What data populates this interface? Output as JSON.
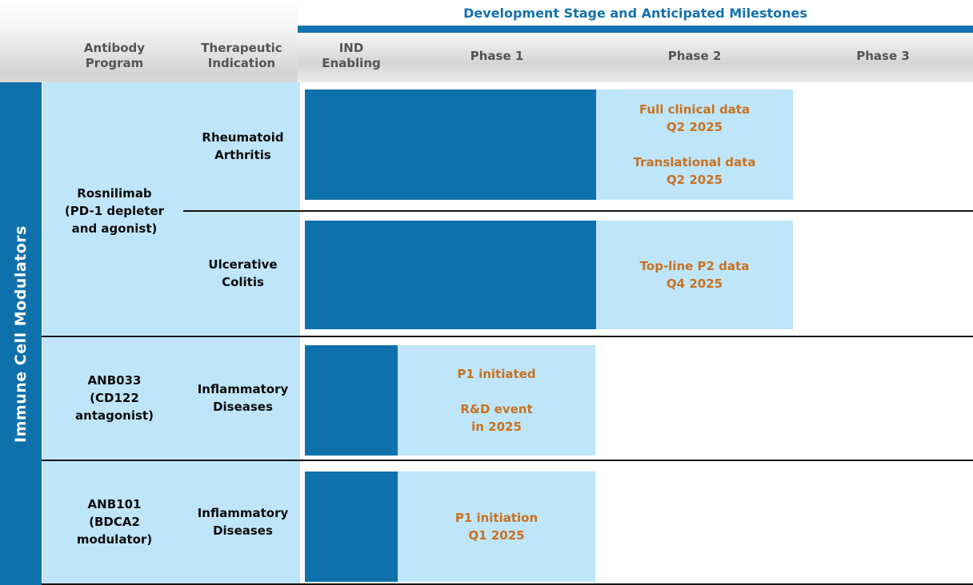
{
  "figure": {
    "title": "Development Stage and Anticipated Milestones",
    "columns": [
      "Antibody\nProgram",
      "Therapeutic\nIndication",
      "IND\nEnabling",
      "Phase 1",
      "Phase 2",
      "Phase 3"
    ],
    "sidebar_label": "Immune Cell Modulators",
    "groups": [
      {
        "program": "Rosnilimab\n(PD-1 depleter\nand agonist)",
        "rows": [
          {
            "indication": "Rheumatoid\nArthritis",
            "milestones": [
              "Full clinical data\nQ2 2025",
              "Translational data\nQ2 2025"
            ]
          },
          {
            "indication": "Ulcerative\nColitis",
            "milestones": [
              "Top-line P2 data\nQ4 2025"
            ]
          }
        ]
      },
      {
        "program": "ANB033\n(CD122\nantagonist)",
        "rows": [
          {
            "indication": "Inflammatory\nDiseases",
            "milestones": [
              "P1 initiated",
              "R&D event\nin 2025"
            ]
          }
        ]
      },
      {
        "program": "ANB101\n(BDCA2\nmodulator)",
        "rows": [
          {
            "indication": "Inflammatory\nDiseases",
            "milestones": [
              "P1 initiation\nQ1 2025"
            ]
          }
        ]
      }
    ]
  },
  "chart_data": {
    "type": "table",
    "title": "Development Stage and Anticipated Milestones",
    "stage_columns": [
      "IND Enabling",
      "Phase 1",
      "Phase 2",
      "Phase 3"
    ],
    "category_group": "Immune Cell Modulators",
    "rows": [
      {
        "program": "Rosnilimab (PD-1 depleter and agonist)",
        "indication": "Rheumatoid Arthritis",
        "completed_stages": [
          "IND Enabling",
          "Phase 1"
        ],
        "current_stage": "Phase 2",
        "milestones": [
          "Full clinical data Q2 2025",
          "Translational data Q2 2025"
        ]
      },
      {
        "program": "Rosnilimab (PD-1 depleter and agonist)",
        "indication": "Ulcerative Colitis",
        "completed_stages": [
          "IND Enabling",
          "Phase 1"
        ],
        "current_stage": "Phase 2",
        "milestones": [
          "Top-line P2 data Q4 2025"
        ]
      },
      {
        "program": "ANB033 (CD122 antagonist)",
        "indication": "Inflammatory Diseases",
        "completed_stages": [
          "IND Enabling"
        ],
        "current_stage": "Phase 1",
        "milestones": [
          "P1 initiated",
          "R&D event in 2025"
        ]
      },
      {
        "program": "ANB101 (BDCA2 modulator)",
        "indication": "Inflammatory Diseases",
        "completed_stages": [
          "IND Enabling"
        ],
        "current_stage": "Phase 1",
        "milestones": [
          "P1 initiation Q1 2025"
        ]
      }
    ]
  },
  "colors": {
    "dark_blue": "#0f71ac",
    "light_blue": "#bfe5fa",
    "accent_bar_blue": "#1173b2",
    "title_blue": "#1471ae",
    "milestone_orange": "#c8721f",
    "header_text_gray": "#545456",
    "line_black": "#141414"
  }
}
